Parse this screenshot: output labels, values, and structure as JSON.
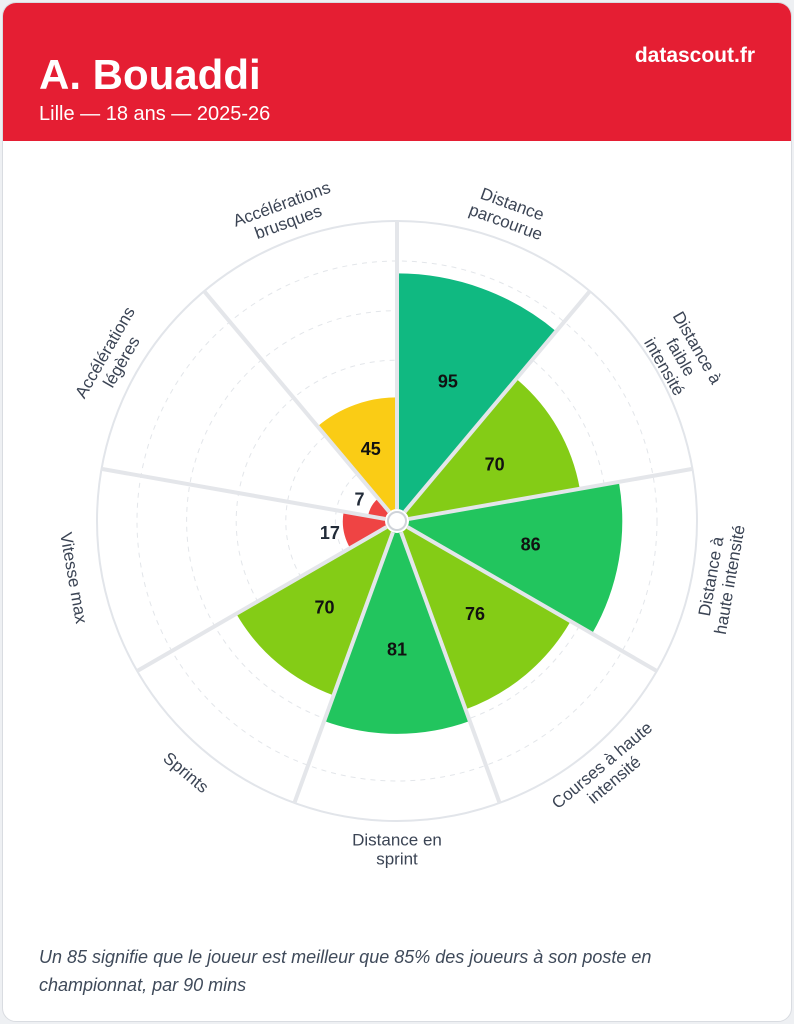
{
  "header": {
    "player_name": "A. Bouaddi",
    "subtitle": "Lille — 18 ans — 2025-26",
    "brand": "datascout.fr",
    "background_color": "#e51e33"
  },
  "footnote": "Un 85 signifie que le joueur est meilleur que 85% des joueurs à son poste en championnat, par 90 mins",
  "chart_data": {
    "type": "polar-bar",
    "scale": [
      0,
      100
    ],
    "grid": true,
    "categories": [
      {
        "label": [
          "Distance",
          "parcourue"
        ],
        "value": 95,
        "color": "#10b981"
      },
      {
        "label": [
          "Distance à",
          "faible",
          "intensité"
        ],
        "value": 70,
        "color": "#84cc16"
      },
      {
        "label": [
          "Distance à",
          "haute intensité"
        ],
        "value": 86,
        "color": "#22c55e"
      },
      {
        "label": [
          "Courses à haute",
          "intensité"
        ],
        "value": 76,
        "color": "#84cc16"
      },
      {
        "label": [
          "Distance en",
          "sprint"
        ],
        "value": 81,
        "color": "#22c55e"
      },
      {
        "label": [
          "Sprints"
        ],
        "value": 70,
        "color": "#84cc16"
      },
      {
        "label": [
          "Vitesse max"
        ],
        "value": 17,
        "color": "#ef4444"
      },
      {
        "label": [
          "Accélérations",
          "légères"
        ],
        "value": 7,
        "color": "#ef4444"
      },
      {
        "label": [
          "Accélérations",
          "brusques"
        ],
        "value": 45,
        "color": "#facc15"
      }
    ]
  }
}
